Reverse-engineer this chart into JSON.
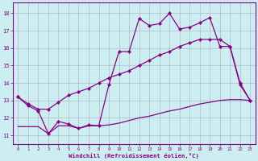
{
  "xlabel": "Windchill (Refroidissement éolien,°C)",
  "bg_color": "#cceef0",
  "line_color": "#880088",
  "grid_color": "#b0b8cc",
  "x_ticks": [
    0,
    1,
    2,
    3,
    4,
    5,
    6,
    7,
    8,
    9,
    10,
    11,
    12,
    13,
    14,
    15,
    16,
    17,
    18,
    19,
    20,
    21,
    22,
    23
  ],
  "y_ticks": [
    11,
    12,
    13,
    14,
    15,
    16,
    17,
    18
  ],
  "ylim": [
    10.5,
    18.6
  ],
  "xlim": [
    -0.5,
    23.5
  ],
  "line1_x": [
    0,
    1,
    2,
    3,
    4,
    5,
    6,
    7,
    8,
    9,
    10,
    11,
    12,
    13,
    14,
    15,
    16,
    17,
    18,
    19,
    20,
    21,
    22,
    23
  ],
  "line1_y": [
    13.2,
    12.7,
    12.4,
    11.1,
    11.8,
    11.65,
    11.4,
    11.6,
    11.55,
    13.9,
    15.8,
    15.8,
    17.7,
    17.3,
    17.4,
    18.0,
    17.1,
    17.2,
    17.45,
    17.75,
    16.1,
    16.1,
    13.9,
    13.0
  ],
  "line2_x": [
    0,
    1,
    2,
    3,
    4,
    5,
    6,
    7,
    8,
    9,
    10,
    11,
    12,
    13,
    14,
    15,
    16,
    17,
    18,
    19,
    20,
    21,
    22,
    23
  ],
  "line2_y": [
    13.2,
    12.8,
    12.5,
    12.5,
    12.9,
    13.3,
    13.5,
    13.7,
    14.0,
    14.3,
    14.5,
    14.7,
    15.0,
    15.3,
    15.6,
    15.8,
    16.1,
    16.3,
    16.5,
    16.5,
    16.5,
    16.1,
    14.0,
    13.0
  ],
  "line3_x": [
    0,
    1,
    2,
    3,
    4,
    5,
    6,
    7,
    8,
    9,
    10,
    11,
    12,
    13,
    14,
    15,
    16,
    17,
    18,
    19,
    20,
    21,
    22,
    23
  ],
  "line3_y": [
    11.5,
    11.5,
    11.5,
    11.1,
    11.55,
    11.55,
    11.4,
    11.55,
    11.55,
    11.6,
    11.7,
    11.85,
    12.0,
    12.1,
    12.25,
    12.4,
    12.5,
    12.65,
    12.8,
    12.9,
    13.0,
    13.05,
    13.05,
    13.0
  ]
}
